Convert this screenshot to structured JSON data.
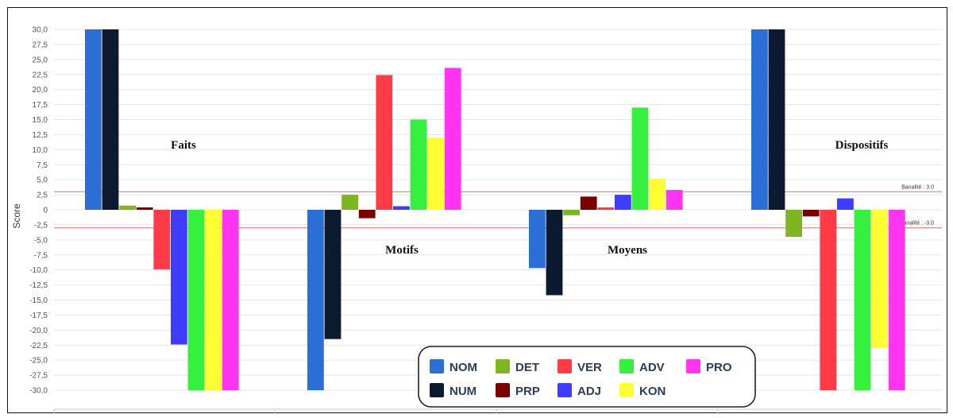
{
  "chart_data": {
    "type": "bar",
    "categories": [
      "Faits",
      "Motifs",
      "Moyens",
      "Dispositifs"
    ],
    "series": [
      {
        "name": "NOM",
        "color": "#2b6ed6",
        "values": [
          30,
          -30,
          -9.7,
          30
        ]
      },
      {
        "name": "NUM",
        "color": "#0c1a30",
        "values": [
          30,
          -21.5,
          -14.2,
          30
        ]
      },
      {
        "name": "DET",
        "color": "#7fb520",
        "values": [
          0.7,
          2.5,
          -0.9,
          -4.5
        ]
      },
      {
        "name": "PRP",
        "color": "#7a0000",
        "values": [
          0.4,
          -1.4,
          2.2,
          -1.1
        ]
      },
      {
        "name": "VER",
        "color": "#ff3b48",
        "values": [
          -9.9,
          22.4,
          0.4,
          -30
        ]
      },
      {
        "name": "ADJ",
        "color": "#3f3bff",
        "values": [
          -22.4,
          0.6,
          2.5,
          1.9
        ]
      },
      {
        "name": "ADV",
        "color": "#36f040",
        "values": [
          -30,
          15.0,
          17.0,
          -30
        ]
      },
      {
        "name": "KON",
        "color": "#ffff33",
        "values": [
          -30,
          12.0,
          5.2,
          -23.0
        ]
      },
      {
        "name": "PRO",
        "color": "#ff33f0",
        "values": [
          -30,
          23.6,
          3.3,
          -30
        ]
      }
    ],
    "ylabel": "Score",
    "ylim": [
      -30,
      30
    ],
    "ytick_step": 2.5,
    "yticks": [
      "30,0",
      "27,5",
      "25,0",
      "22,5",
      "20,0",
      "17,5",
      "15,0",
      "12,5",
      "10,0",
      "7,5",
      "5,0",
      "2,5",
      "0",
      "-2,5",
      "-5,0",
      "-7,5",
      "-10,0",
      "-12,5",
      "-15,0",
      "-17,5",
      "-20,0",
      "-22,5",
      "-25,0",
      "-27,5",
      "-30,0"
    ],
    "thresholds": [
      {
        "value": 3.0,
        "label": "Banalité : 3.0"
      },
      {
        "value": -3.0,
        "label": "Banalité : -3.0"
      }
    ],
    "legend_position": "bottom-center",
    "grid": true
  }
}
